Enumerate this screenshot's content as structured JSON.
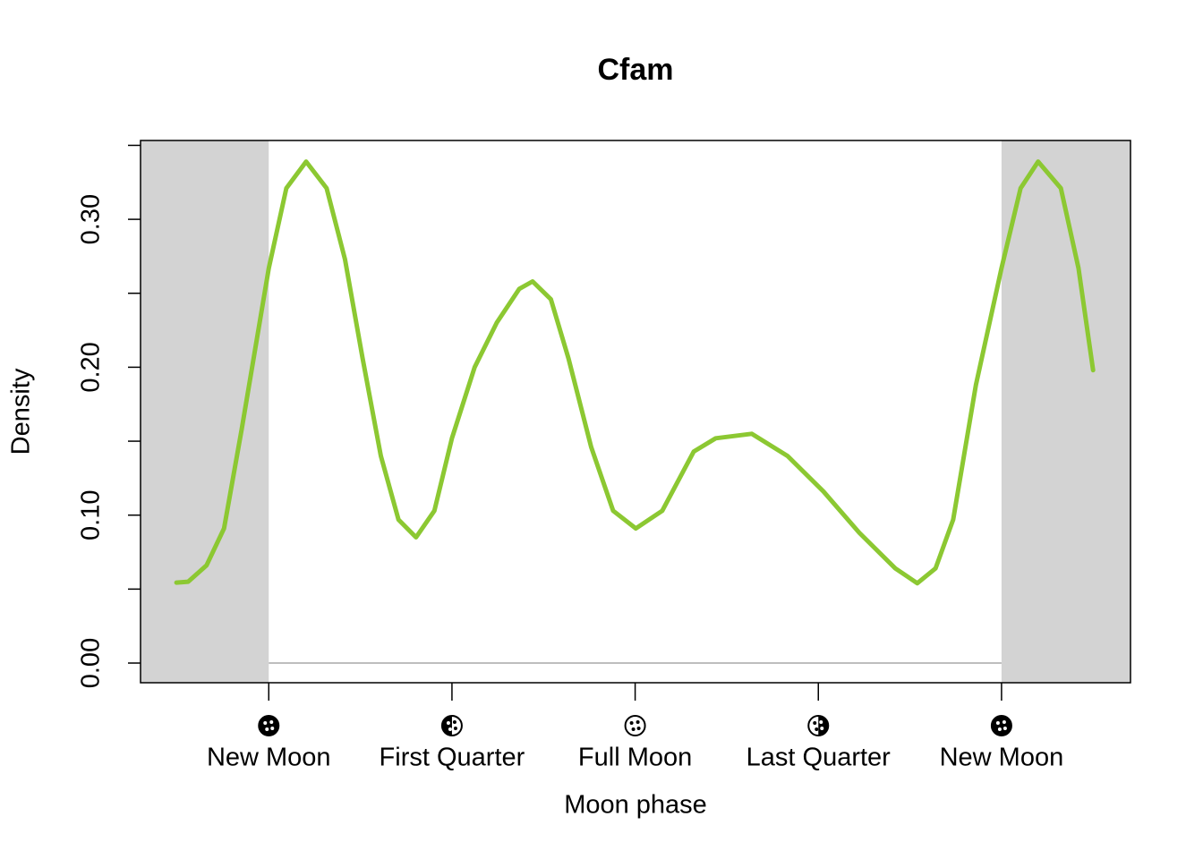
{
  "chart_data": {
    "type": "line",
    "title": "Cfam",
    "x_label": "Moon phase",
    "y_label": "Density",
    "x": [
      -0.126,
      -0.11,
      -0.085,
      -0.061,
      -0.037,
      0,
      0.024,
      0.051,
      0.079,
      0.104,
      0.128,
      0.153,
      0.177,
      0.201,
      0.226,
      0.25,
      0.281,
      0.311,
      0.342,
      0.36,
      0.385,
      0.409,
      0.44,
      0.47,
      0.501,
      0.537,
      0.58,
      0.61,
      0.659,
      0.708,
      0.757,
      0.806,
      0.855,
      0.885,
      0.91,
      0.934,
      0.965,
      1.0,
      1.026,
      1.05,
      1.081,
      1.105,
      1.125
    ],
    "series": [
      {
        "name": "Cfam",
        "color": "#8cc832",
        "values": [
          0.0544,
          0.055,
          0.066,
          0.091,
          0.158,
          0.267,
          0.321,
          0.339,
          0.321,
          0.273,
          0.206,
          0.14,
          0.097,
          0.085,
          0.103,
          0.152,
          0.2,
          0.23,
          0.253,
          0.258,
          0.246,
          0.206,
          0.146,
          0.103,
          0.091,
          0.103,
          0.143,
          0.152,
          0.155,
          0.14,
          0.116,
          0.088,
          0.064,
          0.054,
          0.064,
          0.097,
          0.188,
          0.267,
          0.321,
          0.339,
          0.321,
          0.267,
          0.198
        ]
      }
    ],
    "xlim": [
      -0.175,
      1.176
    ],
    "xticks": [
      {
        "value": 0,
        "label": "New Moon"
      },
      {
        "value": 0.25,
        "label": "First Quarter"
      },
      {
        "value": 0.5,
        "label": "Full Moon"
      },
      {
        "value": 0.75,
        "label": "Last Quarter"
      },
      {
        "value": 1,
        "label": "New Moon"
      }
    ],
    "ylim": [
      -0.0133,
      0.3533
    ],
    "yticks": [
      {
        "value": 0,
        "label": "0.00"
      },
      {
        "value": 0.1,
        "label": "0.10"
      },
      {
        "value": 0.2,
        "label": "0.20"
      },
      {
        "value": 0.3,
        "label": "0.30"
      }
    ],
    "yminor_ticks": [
      0.05,
      0.15,
      0.25,
      0.35
    ],
    "shade_color": "#d3d3d3"
  }
}
